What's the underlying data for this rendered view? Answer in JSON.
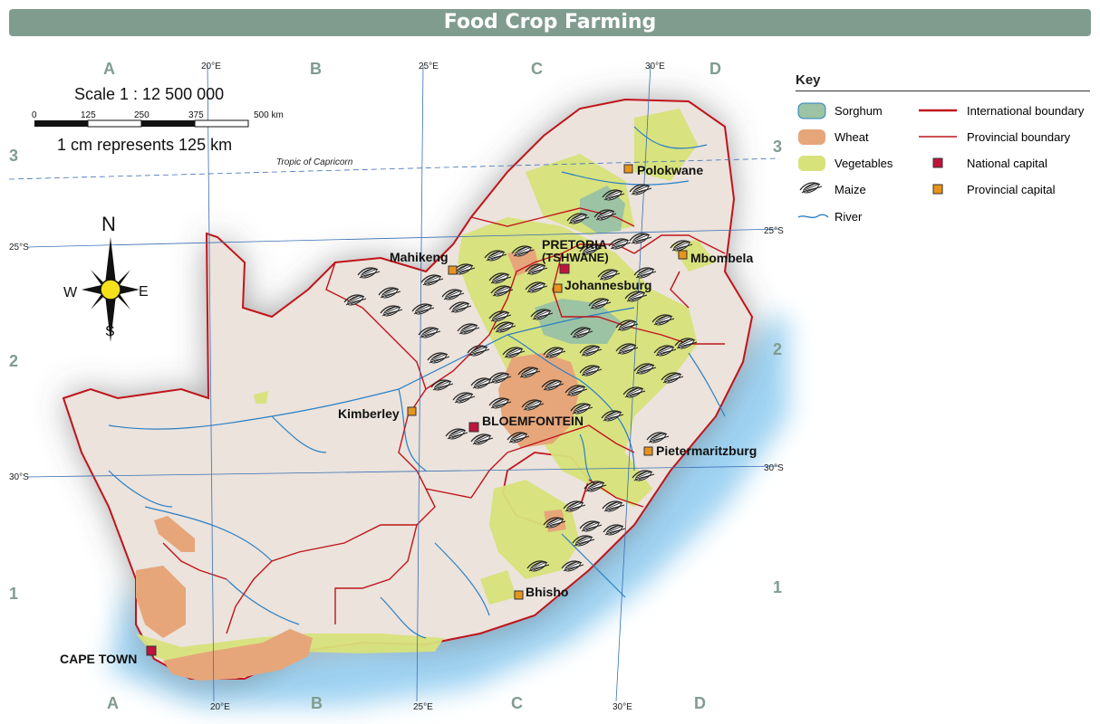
{
  "title": "Food Crop Farming",
  "scale": {
    "ratio": "Scale 1 : 12 500 000",
    "represents": "1 cm represents 125 km",
    "ticks": [
      "0",
      "125",
      "250",
      "375",
      "500 km"
    ]
  },
  "compass": {
    "n": "N",
    "s": "S",
    "e": "E",
    "w": "W"
  },
  "grid": {
    "columns": [
      "A",
      "B",
      "C",
      "D"
    ],
    "rows": [
      "3",
      "2",
      "1"
    ],
    "longitudes": [
      "20°E",
      "25°E",
      "30°E"
    ],
    "latitudes": [
      "25°S",
      "30°S"
    ],
    "tropic": "Tropic of Capricorn"
  },
  "key": {
    "title": "Key",
    "items": [
      {
        "label": "Sorghum",
        "color": "#9cc3a3"
      },
      {
        "label": "Wheat",
        "color": "#e6a67a"
      },
      {
        "label": "Vegetables",
        "color": "#d8e27a"
      },
      {
        "label": "Maize",
        "icon": "maize-icon"
      },
      {
        "label": "River",
        "color": "#2a7fc4"
      },
      {
        "label": "International boundary",
        "color": "#c0141b"
      },
      {
        "label": "Provincial boundary",
        "color": "#c0141b"
      },
      {
        "label": "National capital",
        "color": "#c0143c"
      },
      {
        "label": "Provincial capital",
        "color": "#e8941c"
      }
    ]
  },
  "cities": {
    "pretoria": "PRETORIA",
    "tshwane": "(TSHWANE)",
    "bloemfontein": "BLOEMFONTEIN",
    "cape_town": "CAPE TOWN",
    "polokwane": "Polokwane",
    "mahikeng": "Mahikeng",
    "mbombela": "Mbombela",
    "johannesburg": "Johannesburg",
    "kimberley": "Kimberley",
    "pietermaritzburg": "Pietermaritzburg",
    "bhisho": "Bhisho"
  }
}
